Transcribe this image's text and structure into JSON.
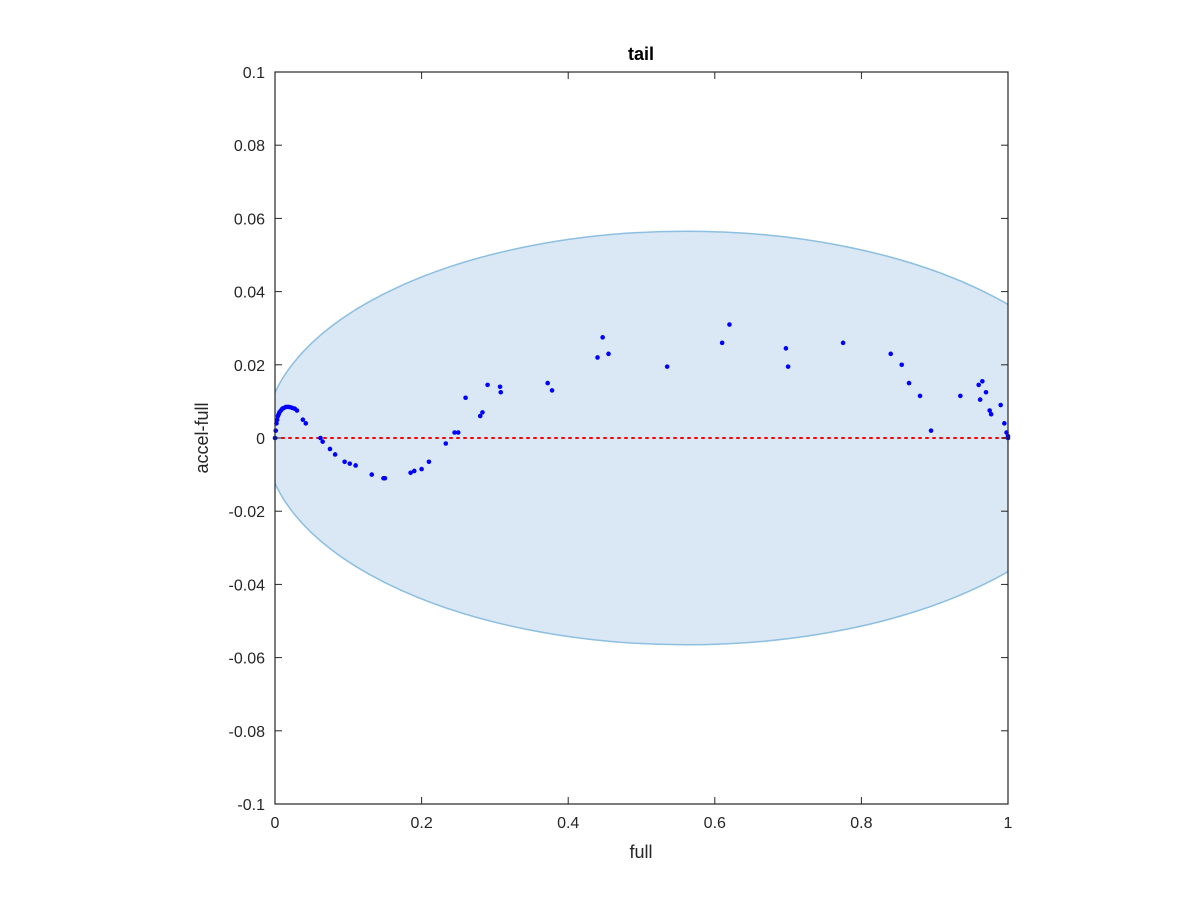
{
  "chart_data": {
    "type": "scatter",
    "title": "tail",
    "xlabel": "full",
    "ylabel": "accel-full",
    "xlim": [
      0,
      1
    ],
    "ylim": [
      -0.1,
      0.1
    ],
    "x_ticks": [
      0,
      0.2,
      0.4,
      0.6,
      0.8,
      1
    ],
    "x_tick_labels": [
      "0",
      "0.2",
      "0.4",
      "0.6",
      "0.8",
      "1"
    ],
    "y_ticks": [
      -0.1,
      -0.08,
      -0.06,
      -0.04,
      -0.02,
      0,
      0.02,
      0.04,
      0.06,
      0.08,
      0.1
    ],
    "y_tick_labels": [
      "-0.1",
      "-0.08",
      "-0.06",
      "-0.04",
      "-0.02",
      "0",
      "0.02",
      "0.04",
      "0.06",
      "0.08",
      "0.1"
    ],
    "grid": false,
    "box": true,
    "ellipse": {
      "center_x": 0.561,
      "center_y": 0.0,
      "radius_x": 0.575,
      "radius_y": 0.0565,
      "fill": "#d9e8f4",
      "stroke": "#8dbfe0"
    },
    "zero_line": {
      "y": 0,
      "color": "#ff0000",
      "style": "dotted"
    },
    "series": [
      {
        "marker_color": "#0000ff",
        "points": [
          [
            0.0,
            0.0
          ],
          [
            0.001,
            0.002
          ],
          [
            0.002,
            0.004
          ],
          [
            0.003,
            0.005
          ],
          [
            0.004,
            0.006
          ],
          [
            0.005,
            0.0065
          ],
          [
            0.006,
            0.007
          ],
          [
            0.008,
            0.0075
          ],
          [
            0.01,
            0.008
          ],
          [
            0.012,
            0.0082
          ],
          [
            0.015,
            0.0085
          ],
          [
            0.018,
            0.0085
          ],
          [
            0.021,
            0.0084
          ],
          [
            0.024,
            0.0082
          ],
          [
            0.027,
            0.008
          ],
          [
            0.03,
            0.0075
          ],
          [
            0.038,
            0.005
          ],
          [
            0.042,
            0.004
          ],
          [
            0.062,
            0.0
          ],
          [
            0.065,
            -0.001
          ],
          [
            0.075,
            -0.003
          ],
          [
            0.082,
            -0.0045
          ],
          [
            0.095,
            -0.0065
          ],
          [
            0.102,
            -0.007
          ],
          [
            0.11,
            -0.0075
          ],
          [
            0.132,
            -0.01
          ],
          [
            0.148,
            -0.011
          ],
          [
            0.15,
            -0.011
          ],
          [
            0.185,
            -0.0095
          ],
          [
            0.19,
            -0.009
          ],
          [
            0.2,
            -0.0085
          ],
          [
            0.21,
            -0.0065
          ],
          [
            0.233,
            -0.0015
          ],
          [
            0.245,
            0.0015
          ],
          [
            0.25,
            0.0015
          ],
          [
            0.26,
            0.011
          ],
          [
            0.28,
            0.006
          ],
          [
            0.283,
            0.007
          ],
          [
            0.29,
            0.0145
          ],
          [
            0.307,
            0.014
          ],
          [
            0.308,
            0.0125
          ],
          [
            0.372,
            0.015
          ],
          [
            0.378,
            0.013
          ],
          [
            0.44,
            0.022
          ],
          [
            0.447,
            0.0275
          ],
          [
            0.455,
            0.023
          ],
          [
            0.535,
            0.0195
          ],
          [
            0.61,
            0.026
          ],
          [
            0.62,
            0.031
          ],
          [
            0.697,
            0.0245
          ],
          [
            0.7,
            0.0195
          ],
          [
            0.775,
            0.026
          ],
          [
            0.84,
            0.023
          ],
          [
            0.855,
            0.02
          ],
          [
            0.865,
            0.015
          ],
          [
            0.88,
            0.0115
          ],
          [
            0.895,
            0.002
          ],
          [
            0.935,
            0.0115
          ],
          [
            0.96,
            0.0145
          ],
          [
            0.962,
            0.0105
          ],
          [
            0.965,
            0.0155
          ],
          [
            0.97,
            0.0125
          ],
          [
            0.975,
            0.0075
          ],
          [
            0.977,
            0.0065
          ],
          [
            0.99,
            0.009
          ],
          [
            0.995,
            0.004
          ],
          [
            0.998,
            0.0015
          ],
          [
            1.0,
            0.0005
          ],
          [
            1.0,
            0.0
          ]
        ]
      }
    ]
  }
}
